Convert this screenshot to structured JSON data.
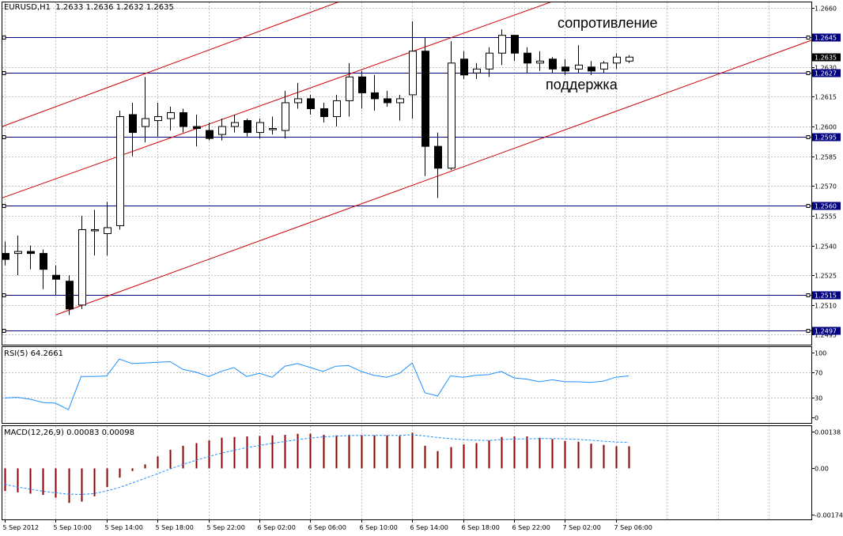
{
  "symbol_title": "EURUSD,H1  1.2633 1.2636 1.2632 1.2635",
  "colors": {
    "background": "#ffffff",
    "grid": "#c0c0c0",
    "level_line": "#00007f",
    "channel": "#cc0000",
    "candle": "#000000",
    "price_box": "#000080",
    "rsi": "#1e90ff",
    "macd_hist": "#8b0000",
    "macd_signal": "#1e90ff"
  },
  "chart_data": [
    {
      "type": "candlestick",
      "title": "EURUSD,H1  1.2633 1.2636 1.2632 1.2635",
      "ylim": [
        1.249,
        1.2663
      ],
      "y_ticks": [
        "1.2660",
        "1.2645",
        "1.2630",
        "1.2615",
        "1.2600",
        "1.2585",
        "1.2570",
        "1.2555",
        "1.2540",
        "1.2525",
        "1.2510",
        "1.2495"
      ],
      "x_ticks": [
        "5 Sep 2012",
        "5 Sep 10:00",
        "5 Sep 14:00",
        "5 Sep 18:00",
        "5 Sep 22:00",
        "6 Sep 02:00",
        "6 Sep 06:00",
        "6 Sep 10:00",
        "6 Sep 14:00",
        "6 Sep 18:00",
        "6 Sep 22:00",
        "7 Sep 02:00",
        "7 Sep 06:00"
      ],
      "current_price": "1.2635",
      "levels": [
        "1.2645",
        "1.2627",
        "1.2595",
        "1.2560",
        "1.2515",
        "1.2497"
      ],
      "annotations": [
        "сопротивление",
        "поддержка"
      ],
      "ohlc": [
        [
          1.2536,
          1.2542,
          1.253,
          1.2533
        ],
        [
          1.2536,
          1.2545,
          1.2525,
          1.2537
        ],
        [
          1.2537,
          1.254,
          1.2528,
          1.2536
        ],
        [
          1.2536,
          1.2538,
          1.2518,
          1.2528
        ],
        [
          1.2525,
          1.253,
          1.2515,
          1.2523
        ],
        [
          1.2522,
          1.2525,
          1.2505,
          1.2508
        ],
        [
          1.251,
          1.2555,
          1.2508,
          1.2548
        ],
        [
          1.2548,
          1.2558,
          1.2535,
          1.2548
        ],
        [
          1.2546,
          1.2562,
          1.2535,
          1.2549
        ],
        [
          1.255,
          1.2608,
          1.2548,
          1.2605
        ],
        [
          1.2606,
          1.2612,
          1.2585,
          1.2597
        ],
        [
          1.26,
          1.2625,
          1.2592,
          1.2604
        ],
        [
          1.2603,
          1.2612,
          1.2595,
          1.2605
        ],
        [
          1.2604,
          1.261,
          1.2598,
          1.2607
        ],
        [
          1.2607,
          1.2609,
          1.2597,
          1.26
        ],
        [
          1.26,
          1.2606,
          1.259,
          1.2599
        ],
        [
          1.2598,
          1.2602,
          1.2593,
          1.2594
        ],
        [
          1.2596,
          1.2604,
          1.2593,
          1.26
        ],
        [
          1.26,
          1.2606,
          1.2597,
          1.2602
        ],
        [
          1.2603,
          1.2604,
          1.2595,
          1.2597
        ],
        [
          1.2597,
          1.2604,
          1.2594,
          1.2602
        ],
        [
          1.2599,
          1.2605,
          1.2596,
          1.2599
        ],
        [
          1.2598,
          1.2618,
          1.2594,
          1.2612
        ],
        [
          1.2612,
          1.2622,
          1.2609,
          1.2614
        ],
        [
          1.2614,
          1.2616,
          1.2606,
          1.2609
        ],
        [
          1.2609,
          1.2612,
          1.2602,
          1.2605
        ],
        [
          1.2605,
          1.2616,
          1.26,
          1.2613
        ],
        [
          1.2613,
          1.2632,
          1.2605,
          1.2625
        ],
        [
          1.2625,
          1.2628,
          1.2609,
          1.2617
        ],
        [
          1.2617,
          1.2626,
          1.2608,
          1.2614
        ],
        [
          1.2614,
          1.2618,
          1.261,
          1.2612
        ],
        [
          1.2612,
          1.2616,
          1.2603,
          1.2614
        ],
        [
          1.2616,
          1.2653,
          1.2604,
          1.2638
        ],
        [
          1.2638,
          1.2645,
          1.2575,
          1.259
        ],
        [
          1.259,
          1.2597,
          1.2564,
          1.2579
        ],
        [
          1.2579,
          1.2643,
          1.2578,
          1.2632
        ],
        [
          1.2634,
          1.2638,
          1.2624,
          1.2626
        ],
        [
          1.2627,
          1.2632,
          1.2624,
          1.2629
        ],
        [
          1.2629,
          1.264,
          1.2625,
          1.2637
        ],
        [
          1.2637,
          1.2649,
          1.2631,
          1.2646
        ],
        [
          1.2646,
          1.2646,
          1.2633,
          1.2637
        ],
        [
          1.2637,
          1.264,
          1.2627,
          1.2632
        ],
        [
          1.2632,
          1.2638,
          1.2628,
          1.2633
        ],
        [
          1.2634,
          1.2635,
          1.2627,
          1.2629
        ],
        [
          1.263,
          1.2634,
          1.2626,
          1.2628
        ],
        [
          1.2629,
          1.2641,
          1.2627,
          1.2631
        ],
        [
          1.263,
          1.2633,
          1.2626,
          1.2628
        ],
        [
          1.2629,
          1.2633,
          1.2627,
          1.2632
        ],
        [
          1.2632,
          1.2637,
          1.2629,
          1.2635
        ],
        [
          1.2633,
          1.2636,
          1.2632,
          1.2635
        ]
      ],
      "channel_lines": [
        {
          "x": [
            -0.2,
            26.3
          ],
          "y": [
            1.26,
            1.2663
          ]
        },
        {
          "x": [
            -0.2,
            43.0
          ],
          "y": [
            1.2564,
            1.2663
          ]
        },
        {
          "x": [
            4.0,
            64.0
          ],
          "y": [
            1.2505,
            1.2645
          ]
        }
      ]
    },
    {
      "type": "line",
      "title": "RSI(5) 64.2661",
      "ylim": [
        0,
        100
      ],
      "y_ticks": [
        "100",
        "70",
        "30",
        "0"
      ],
      "values": [
        30,
        31,
        28,
        23,
        22,
        12,
        63,
        63,
        64,
        90,
        83,
        84,
        85,
        86,
        74,
        70,
        63,
        71,
        77,
        63,
        68,
        62,
        79,
        83,
        77,
        71,
        79,
        80,
        71,
        65,
        62,
        68,
        84,
        38,
        33,
        64,
        62,
        65,
        66,
        71,
        61,
        59,
        55,
        58,
        55,
        55,
        54,
        56,
        62,
        64
      ]
    },
    {
      "type": "bar",
      "title": "MACD(12,26,9) 0.00083 0.00098",
      "ylim": [
        -0.00174,
        0.00138
      ],
      "y_ticks": [
        "0.00138",
        "0.00",
        "-0.00174"
      ],
      "histogram": [
        -0.00085,
        -0.0009,
        -0.00095,
        -0.001,
        -0.0011,
        -0.0013,
        -0.00125,
        -0.00105,
        -0.0007,
        -0.00035,
        -0.0001,
        0.00015,
        0.00045,
        0.0007,
        0.00085,
        0.00095,
        0.00105,
        0.00115,
        0.00118,
        0.0012,
        0.00122,
        0.00124,
        0.00126,
        0.0013,
        0.0013,
        0.00126,
        0.00124,
        0.00126,
        0.00125,
        0.00124,
        0.00124,
        0.00122,
        0.00134,
        0.00085,
        0.00065,
        0.0008,
        0.0009,
        0.00095,
        0.00105,
        0.00118,
        0.0012,
        0.0012,
        0.00115,
        0.0011,
        0.00103,
        0.001,
        0.00093,
        0.00088,
        0.00083,
        0.00083
      ],
      "signal": [
        -0.0006,
        -0.0007,
        -0.00078,
        -0.00086,
        -0.00092,
        -0.00097,
        -0.00098,
        -0.00095,
        -0.00085,
        -0.00072,
        -0.00055,
        -0.00038,
        -0.0002,
        -2e-05,
        0.00015,
        0.0003,
        0.00044,
        0.00057,
        0.00068,
        0.00078,
        0.00086,
        0.00094,
        0.00101,
        0.00108,
        0.00114,
        0.00118,
        0.00121,
        0.00123,
        0.00124,
        0.00124,
        0.00124,
        0.00124,
        0.00126,
        0.00122,
        0.00116,
        0.00112,
        0.00108,
        0.00106,
        0.00105,
        0.00108,
        0.0011,
        0.00111,
        0.00112,
        0.00112,
        0.00111,
        0.00109,
        0.00106,
        0.00102,
        0.00099,
        0.00098
      ]
    }
  ]
}
